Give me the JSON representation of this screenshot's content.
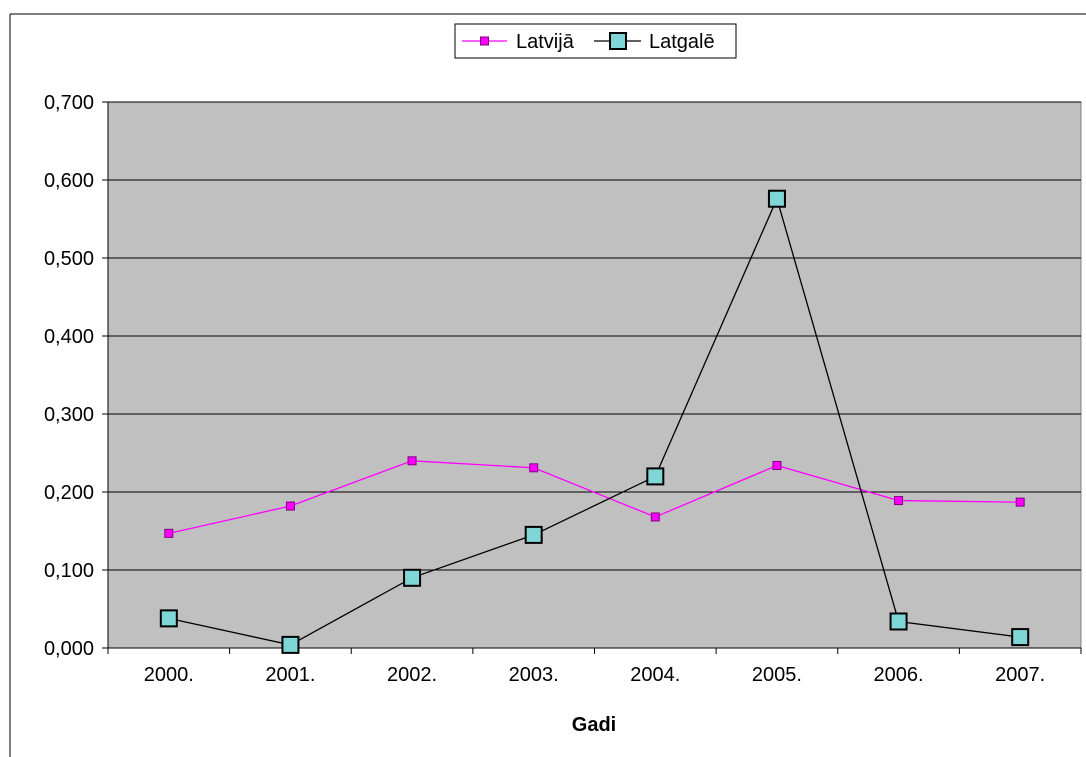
{
  "chart_data": {
    "type": "line",
    "title": "",
    "xlabel": "Gadi",
    "ylabel": "",
    "categories": [
      "2000.",
      "2001.",
      "2002.",
      "2003.",
      "2004.",
      "2005.",
      "2006.",
      "2007."
    ],
    "ylim": [
      0,
      0.7
    ],
    "yticks": [
      0,
      0.1,
      0.2,
      0.3,
      0.4,
      0.5,
      0.6,
      0.7
    ],
    "ytick_labels": [
      "0,000",
      "0,100",
      "0,200",
      "0,300",
      "0,400",
      "0,500",
      "0,600",
      "0,700"
    ],
    "grid": true,
    "legend_position": "top",
    "plot_background": "#c0c0c0",
    "series": [
      {
        "name": "Latvijā",
        "values": [
          0.147,
          0.182,
          0.24,
          0.231,
          0.168,
          0.234,
          0.189,
          0.187
        ],
        "line_color": "#ff00ff",
        "marker": "square",
        "marker_fill": "#ff00ff",
        "marker_stroke": "#800080"
      },
      {
        "name": "Latgalē",
        "values": [
          0.038,
          0.004,
          0.09,
          0.145,
          0.22,
          0.576,
          0.034,
          0.014
        ],
        "line_color": "#000000",
        "marker": "square",
        "marker_fill": "#7fd6d6",
        "marker_stroke": "#000000"
      }
    ]
  }
}
